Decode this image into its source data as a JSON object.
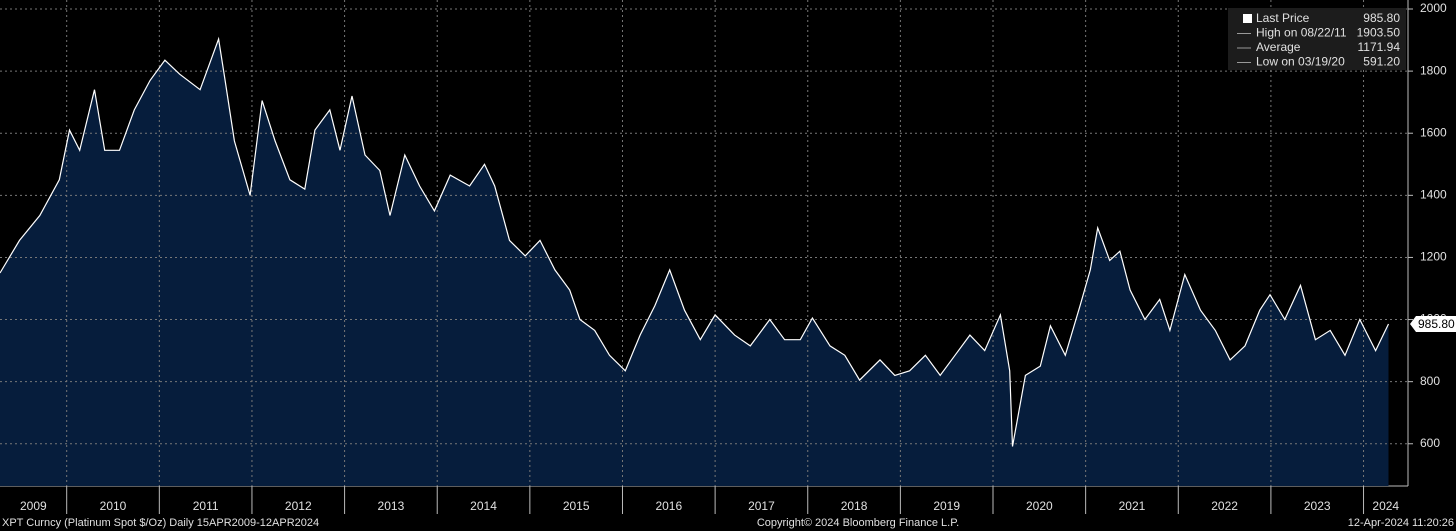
{
  "chart_data": {
    "type": "area",
    "series": [
      {
        "name": "Last Price",
        "color": "#ffffff",
        "fill": "#061d3c",
        "values": [
          1150,
          1255,
          1335,
          1450,
          1610,
          1545,
          1740,
          1545,
          1545,
          1675,
          1770,
          1835,
          1790,
          1740,
          1903.5,
          1770,
          1575,
          1400,
          1705,
          1575,
          1450,
          1420,
          1610,
          1675,
          1545,
          1720,
          1530,
          1480,
          1335,
          1530,
          1430,
          1350,
          1465,
          1430,
          1500,
          1430,
          1255,
          1205,
          1255,
          1160,
          1095,
          1000,
          965,
          885,
          835,
          950,
          1045,
          1160,
          1030,
          935,
          1015,
          950,
          915,
          1000,
          935,
          935,
          1005,
          915,
          885,
          805,
          870,
          820,
          835,
          885,
          820,
          885,
          950,
          900,
          1015,
          835,
          591.2,
          820,
          850,
          980,
          885,
          1045,
          1160,
          1295,
          1190,
          1220,
          1095,
          1000,
          1065,
          965,
          1145,
          1030,
          965,
          870,
          915,
          1030,
          1080,
          1000,
          1110,
          935,
          965,
          885,
          1000,
          900,
          985.8
        ]
      }
    ],
    "x": [
      2009.28,
      2009.49,
      2009.71,
      2009.92,
      2010.03,
      2010.14,
      2010.3,
      2010.41,
      2010.57,
      2010.73,
      2010.9,
      2011.06,
      2011.22,
      2011.44,
      2011.64,
      2011.71,
      2011.81,
      2011.98,
      2012.11,
      2012.25,
      2012.41,
      2012.57,
      2012.68,
      2012.84,
      2012.95,
      2013.08,
      2013.22,
      2013.38,
      2013.49,
      2013.65,
      2013.81,
      2013.97,
      2014.14,
      2014.35,
      2014.51,
      2014.62,
      2014.78,
      2014.95,
      2015.11,
      2015.27,
      2015.43,
      2015.54,
      2015.7,
      2015.86,
      2016.03,
      2016.19,
      2016.35,
      2016.51,
      2016.67,
      2016.84,
      2017.0,
      2017.21,
      2017.38,
      2017.59,
      2017.75,
      2017.92,
      2018.05,
      2018.24,
      2018.4,
      2018.56,
      2018.78,
      2018.94,
      2019.1,
      2019.27,
      2019.43,
      2019.59,
      2019.75,
      2019.91,
      2020.08,
      2020.18,
      2020.21,
      2020.35,
      2020.51,
      2020.62,
      2020.78,
      2020.94,
      2021.05,
      2021.13,
      2021.26,
      2021.37,
      2021.48,
      2021.64,
      2021.8,
      2021.91,
      2022.07,
      2022.24,
      2022.4,
      2022.56,
      2022.72,
      2022.88,
      2022.99,
      2023.15,
      2023.32,
      2023.48,
      2023.64,
      2023.8,
      2023.96,
      2024.13,
      2024.27
    ],
    "xlim": [
      2009.28,
      2024.48
    ],
    "xticks": [
      2010,
      2011,
      2012,
      2013,
      2014,
      2015,
      2016,
      2017,
      2018,
      2019,
      2020,
      2021,
      2022,
      2023,
      2024
    ],
    "xlabels": [
      "2009",
      "2010",
      "2011",
      "2012",
      "2013",
      "2014",
      "2015",
      "2016",
      "2017",
      "2018",
      "2019",
      "2020",
      "2021",
      "2022",
      "2023",
      "2024"
    ],
    "ylim": [
      464,
      2029
    ],
    "yticks": [
      600,
      800,
      1000,
      1200,
      1400,
      1600,
      1800,
      2000
    ],
    "grid": true,
    "legend": {
      "labels": [
        "Last Price",
        "High on 08/22/11",
        "Average",
        "Low on 03/19/20"
      ],
      "values": [
        985.8,
        1903.5,
        1171.94,
        591.2
      ],
      "value_labels": [
        "985.80",
        "1903.50",
        "1171.94",
        "591.20"
      ]
    }
  },
  "footer": {
    "left": "XPT Curncy (Platinum Spot  $/Oz)  Daily 15APR2009-12APR2024",
    "center": "Copyright© 2024 Bloomberg Finance L.P.",
    "right": "12-Apr-2024 11:20:26"
  }
}
